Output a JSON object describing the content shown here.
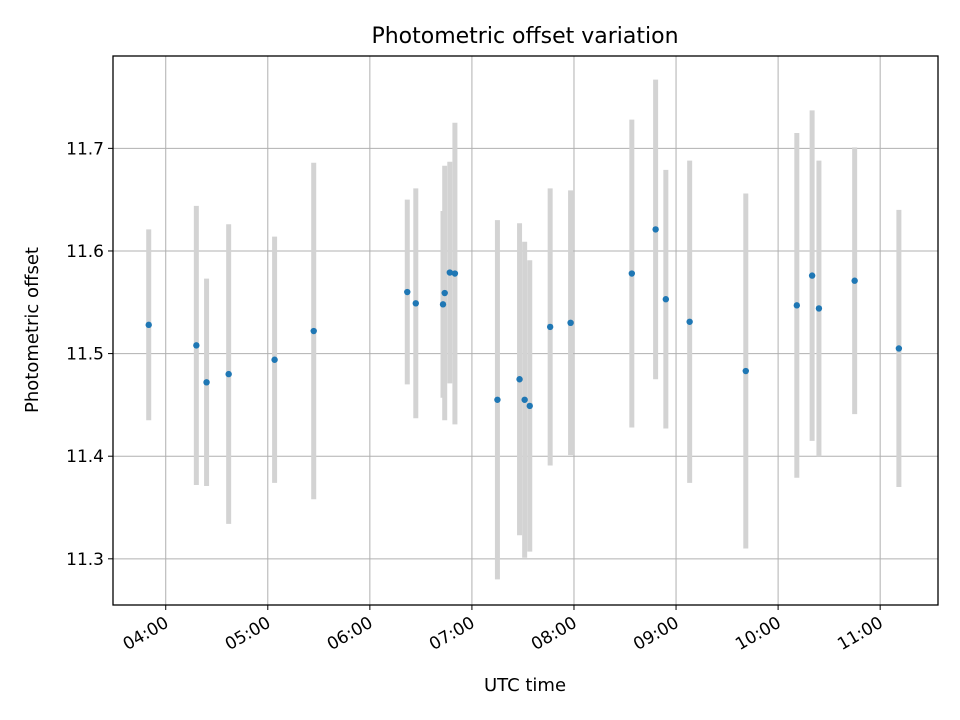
{
  "chart_data": {
    "type": "scatter",
    "title": "Photometric offset variation",
    "xlabel": "UTC time",
    "ylabel": "Photometric offset",
    "xlim": [
      "03:29",
      "11:34"
    ],
    "ylim": [
      11.255,
      11.79
    ],
    "x_ticks": [
      "04:00",
      "05:00",
      "06:00",
      "07:00",
      "08:00",
      "09:00",
      "10:00",
      "11:00"
    ],
    "y_ticks": [
      11.3,
      11.4,
      11.5,
      11.6,
      11.7
    ],
    "grid": true,
    "marker_color": "#1f77b4",
    "errorbar_color": "#d3d3d3",
    "points": [
      {
        "time": "03:50",
        "y": 11.528,
        "err": 0.093
      },
      {
        "time": "04:18",
        "y": 11.508,
        "err": 0.136
      },
      {
        "time": "04:24",
        "y": 11.472,
        "err": 0.101
      },
      {
        "time": "04:37",
        "y": 11.48,
        "err": 0.146
      },
      {
        "time": "05:04",
        "y": 11.494,
        "err": 0.12
      },
      {
        "time": "05:27",
        "y": 11.522,
        "err": 0.164
      },
      {
        "time": "06:22",
        "y": 11.56,
        "err": 0.09
      },
      {
        "time": "06:27",
        "y": 11.549,
        "err": 0.112
      },
      {
        "time": "06:43",
        "y": 11.548,
        "err": 0.091
      },
      {
        "time": "06:44",
        "y": 11.559,
        "err": 0.124
      },
      {
        "time": "06:47",
        "y": 11.579,
        "err": 0.108
      },
      {
        "time": "06:50",
        "y": 11.578,
        "err": 0.147
      },
      {
        "time": "07:15",
        "y": 11.455,
        "err": 0.175
      },
      {
        "time": "07:28",
        "y": 11.475,
        "err": 0.152
      },
      {
        "time": "07:31",
        "y": 11.455,
        "err": 0.154
      },
      {
        "time": "07:34",
        "y": 11.449,
        "err": 0.142
      },
      {
        "time": "07:46",
        "y": 11.526,
        "err": 0.135
      },
      {
        "time": "07:58",
        "y": 11.53,
        "err": 0.129
      },
      {
        "time": "08:34",
        "y": 11.578,
        "err": 0.15
      },
      {
        "time": "08:48",
        "y": 11.621,
        "err": 0.146
      },
      {
        "time": "08:54",
        "y": 11.553,
        "err": 0.126
      },
      {
        "time": "09:08",
        "y": 11.531,
        "err": 0.157
      },
      {
        "time": "09:41",
        "y": 11.483,
        "err": 0.173
      },
      {
        "time": "10:11",
        "y": 11.547,
        "err": 0.168
      },
      {
        "time": "10:20",
        "y": 11.576,
        "err": 0.161
      },
      {
        "time": "10:24",
        "y": 11.544,
        "err": 0.144
      },
      {
        "time": "10:45",
        "y": 11.571,
        "err": 0.13
      },
      {
        "time": "11:11",
        "y": 11.505,
        "err": 0.135
      }
    ]
  }
}
